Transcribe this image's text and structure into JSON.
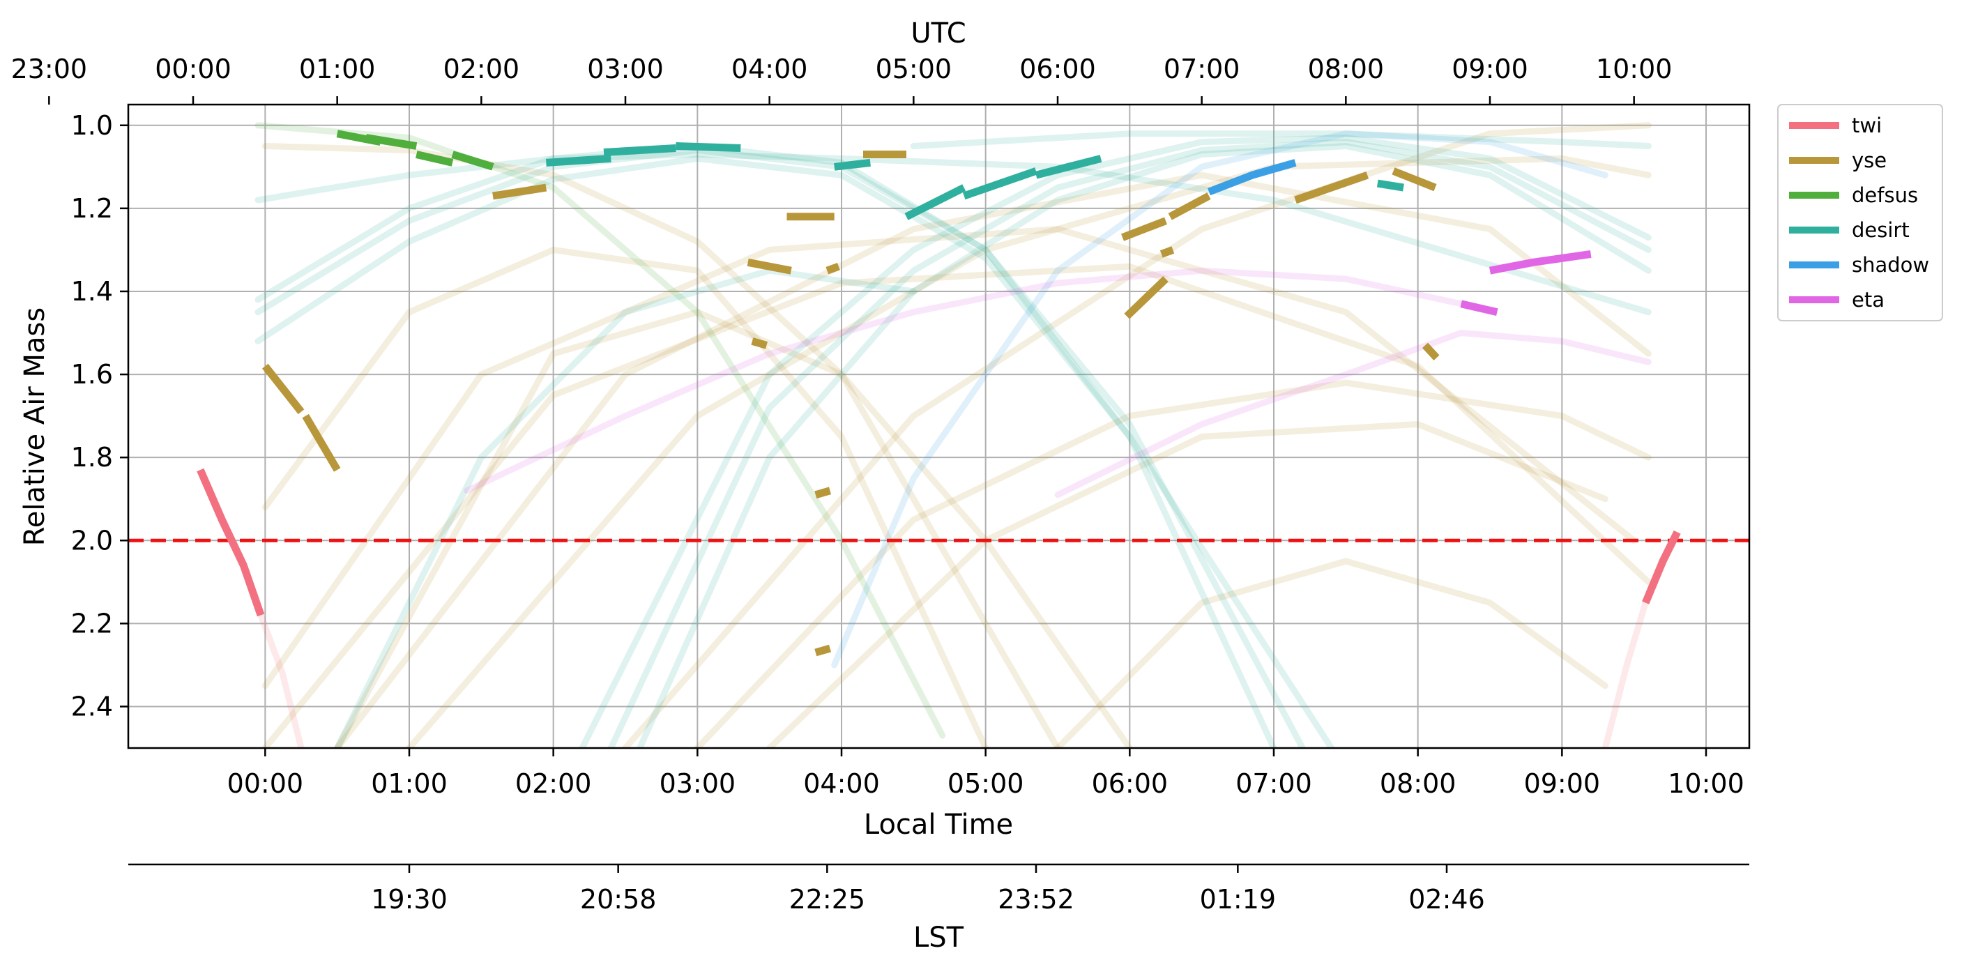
{
  "chart_data": {
    "type": "line",
    "title": "",
    "top_axis": {
      "label": "UTC",
      "ticks": [
        "23:00",
        "00:00",
        "01:00",
        "02:00",
        "03:00",
        "04:00",
        "05:00",
        "06:00",
        "07:00",
        "08:00",
        "09:00",
        "10:00"
      ]
    },
    "xlabel": "Local Time",
    "ylabel": "Relative Air Mass",
    "lst_axis": {
      "label": "LST",
      "ticks": [
        "19:30",
        "20:58",
        "22:25",
        "23:52",
        "01:19",
        "02:46"
      ]
    },
    "x_unit": "hours after local midnight",
    "xlim": [
      -0.95,
      10.3
    ],
    "ylim": [
      2.5,
      0.95
    ],
    "y_inverted": true,
    "x_ticks": [
      "00:00",
      "01:00",
      "02:00",
      "03:00",
      "04:00",
      "05:00",
      "06:00",
      "07:00",
      "08:00",
      "09:00",
      "10:00"
    ],
    "y_ticks": [
      "1.0",
      "1.2",
      "1.4",
      "1.6",
      "1.8",
      "2.0",
      "2.2",
      "2.4"
    ],
    "grid": true,
    "legend_position": "outside-right",
    "limit_line": {
      "y": 2.0,
      "color": "#ee1111",
      "style": "dashed"
    },
    "series": [
      {
        "name": "twi",
        "color": "#f2707f",
        "segments": [
          {
            "x": [
              -0.45,
              -0.3,
              -0.15,
              -0.03
            ],
            "y": [
              1.83,
              1.95,
              2.06,
              2.18
            ]
          },
          {
            "x": [
              9.58,
              9.7,
              9.8
            ],
            "y": [
              2.15,
              2.05,
              1.98
            ]
          }
        ],
        "faint": [
          {
            "x": [
              -0.03,
              0.12,
              0.25
            ],
            "y": [
              2.18,
              2.32,
              2.5
            ]
          },
          {
            "x": [
              9.3,
              9.45,
              9.58
            ],
            "y": [
              2.5,
              2.3,
              2.15
            ]
          }
        ]
      },
      {
        "name": "yse",
        "color": "#b8963a",
        "segments": [
          {
            "x": [
              0.0,
              0.25
            ],
            "y": [
              1.58,
              1.69
            ]
          },
          {
            "x": [
              0.28,
              0.5
            ],
            "y": [
              1.7,
              1.83
            ]
          },
          {
            "x": [
              1.58,
              1.95
            ],
            "y": [
              1.17,
              1.15
            ]
          },
          {
            "x": [
              3.35,
              3.65
            ],
            "y": [
              1.33,
              1.35
            ]
          },
          {
            "x": [
              3.62,
              3.95
            ],
            "y": [
              1.22,
              1.22
            ]
          },
          {
            "x": [
              3.38,
              3.48
            ],
            "y": [
              1.52,
              1.53
            ]
          },
          {
            "x": [
              3.82,
              3.92
            ],
            "y": [
              1.89,
              1.88
            ]
          },
          {
            "x": [
              3.82,
              3.92
            ],
            "y": [
              2.27,
              2.26
            ]
          },
          {
            "x": [
              3.9,
              3.98
            ],
            "y": [
              1.35,
              1.34
            ]
          },
          {
            "x": [
              4.15,
              4.45
            ],
            "y": [
              1.07,
              1.07
            ]
          },
          {
            "x": [
              5.95,
              6.25
            ],
            "y": [
              1.27,
              1.23
            ]
          },
          {
            "x": [
              5.98,
              6.25
            ],
            "y": [
              1.46,
              1.37
            ]
          },
          {
            "x": [
              6.22,
              6.3
            ],
            "y": [
              1.31,
              1.3
            ]
          },
          {
            "x": [
              6.28,
              6.55
            ],
            "y": [
              1.22,
              1.17
            ]
          },
          {
            "x": [
              7.15,
              7.65
            ],
            "y": [
              1.18,
              1.12
            ]
          },
          {
            "x": [
              7.83,
              8.12
            ],
            "y": [
              1.11,
              1.15
            ]
          },
          {
            "x": [
              8.05,
              8.13
            ],
            "y": [
              1.53,
              1.56
            ]
          }
        ],
        "faint": [
          {
            "x": [
              0.0,
              1.5,
              3.5,
              5.5,
              7.5,
              9.5
            ],
            "y": [
              2.35,
              1.6,
              1.3,
              1.25,
              1.45,
              2.0
            ]
          },
          {
            "x": [
              0.0,
              2.0,
              4.0,
              6.0,
              8.0,
              9.6
            ],
            "y": [
              2.5,
              1.65,
              1.38,
              1.34,
              1.58,
              2.1
            ]
          },
          {
            "x": [
              0.5,
              2.5,
              4.5,
              6.5,
              8.5,
              9.6
            ],
            "y": [
              2.5,
              1.6,
              1.25,
              1.12,
              1.25,
              1.55
            ]
          },
          {
            "x": [
              1.0,
              3.0,
              5.0,
              7.0,
              9.0,
              9.6
            ],
            "y": [
              2.5,
              1.7,
              1.3,
              1.1,
              1.08,
              1.12
            ]
          },
          {
            "x": [
              2.5,
              4.5,
              6.5,
              8.5,
              9.6
            ],
            "y": [
              2.5,
              1.7,
              1.25,
              1.02,
              1.0
            ]
          },
          {
            "x": [
              3.0,
              4.5,
              6.0,
              7.5,
              9.0,
              9.6
            ],
            "y": [
              2.5,
              1.95,
              1.7,
              1.62,
              1.7,
              1.8
            ]
          },
          {
            "x": [
              0.0,
              1.0,
              2.0,
              3.0,
              4.0,
              5.0
            ],
            "y": [
              1.92,
              1.45,
              1.3,
              1.35,
              1.75,
              2.5
            ]
          },
          {
            "x": [
              0.0,
              1.0,
              2.0,
              3.0,
              4.0,
              5.5
            ],
            "y": [
              1.05,
              1.06,
              1.12,
              1.28,
              1.6,
              2.5
            ]
          },
          {
            "x": [
              0.5,
              2.0,
              3.0,
              4.0,
              5.0,
              6.0
            ],
            "y": [
              2.5,
              1.55,
              1.45,
              1.6,
              2.0,
              2.5
            ]
          },
          {
            "x": [
              3.5,
              5.0,
              6.5,
              8.0,
              9.3
            ],
            "y": [
              2.5,
              2.0,
              1.75,
              1.72,
              1.9
            ]
          },
          {
            "x": [
              5.5,
              6.5,
              7.5,
              8.5,
              9.3
            ],
            "y": [
              2.5,
              2.15,
              2.05,
              2.15,
              2.35
            ]
          }
        ]
      },
      {
        "name": "defsus",
        "color": "#4fae3c",
        "segments": [
          {
            "x": [
              0.5,
              0.8
            ],
            "y": [
              1.02,
              1.04
            ]
          },
          {
            "x": [
              0.7,
              1.05
            ],
            "y": [
              1.03,
              1.05
            ]
          },
          {
            "x": [
              1.05,
              1.3
            ],
            "y": [
              1.07,
              1.09
            ]
          },
          {
            "x": [
              1.3,
              1.58
            ],
            "y": [
              1.07,
              1.1
            ]
          }
        ],
        "faint": [
          {
            "x": [
              -0.05,
              1.0,
              2.0,
              3.0,
              4.0,
              4.7
            ],
            "y": [
              1.0,
              1.03,
              1.15,
              1.45,
              2.0,
              2.47
            ]
          }
        ]
      },
      {
        "name": "desirt",
        "color": "#2fb09e",
        "segments": [
          {
            "x": [
              1.95,
              2.4
            ],
            "y": [
              1.09,
              1.08
            ]
          },
          {
            "x": [
              2.35,
              2.85
            ],
            "y": [
              1.065,
              1.055
            ]
          },
          {
            "x": [
              2.85,
              3.3
            ],
            "y": [
              1.05,
              1.055
            ]
          },
          {
            "x": [
              3.95,
              4.2
            ],
            "y": [
              1.1,
              1.09
            ]
          },
          {
            "x": [
              4.45,
              4.85
            ],
            "y": [
              1.22,
              1.15
            ]
          },
          {
            "x": [
              4.85,
              5.35
            ],
            "y": [
              1.17,
              1.11
            ]
          },
          {
            "x": [
              5.35,
              5.8
            ],
            "y": [
              1.12,
              1.08
            ]
          },
          {
            "x": [
              7.72,
              7.9
            ],
            "y": [
              1.14,
              1.15
            ]
          }
        ],
        "faint": [
          {
            "x": [
              -0.05,
              1.0,
              2.0,
              3.0,
              4.0,
              5.0,
              6.0,
              7.0
            ],
            "y": [
              1.42,
              1.2,
              1.08,
              1.05,
              1.09,
              1.3,
              1.75,
              2.5
            ]
          },
          {
            "x": [
              -0.05,
              1.0,
              2.0,
              3.0,
              4.0,
              5.0,
              6.0,
              7.2
            ],
            "y": [
              1.45,
              1.23,
              1.1,
              1.06,
              1.1,
              1.3,
              1.72,
              2.5
            ]
          },
          {
            "x": [
              -0.05,
              1.0,
              2.0,
              3.0,
              4.0,
              5.0,
              6.0,
              7.4
            ],
            "y": [
              1.52,
              1.28,
              1.13,
              1.08,
              1.12,
              1.32,
              1.75,
              2.5
            ]
          },
          {
            "x": [
              2.2,
              3.5,
              4.5,
              5.5,
              6.5,
              7.5,
              8.5,
              9.6
            ],
            "y": [
              2.5,
              1.6,
              1.3,
              1.12,
              1.04,
              1.03,
              1.08,
              1.27
            ]
          },
          {
            "x": [
              2.4,
              3.5,
              4.5,
              5.5,
              6.5,
              7.5,
              8.5,
              9.6
            ],
            "y": [
              2.5,
              1.68,
              1.35,
              1.15,
              1.06,
              1.04,
              1.1,
              1.3
            ]
          },
          {
            "x": [
              2.6,
              3.5,
              4.5,
              5.5,
              6.5,
              7.5,
              8.5,
              9.6
            ],
            "y": [
              2.5,
              1.8,
              1.4,
              1.18,
              1.07,
              1.05,
              1.12,
              1.35
            ]
          },
          {
            "x": [
              -0.05,
              1.0,
              2.0,
              3.0,
              4.0,
              5.5,
              7.0,
              9.6
            ],
            "y": [
              1.18,
              1.12,
              1.08,
              1.07,
              1.08,
              1.1,
              1.18,
              1.45
            ]
          },
          {
            "x": [
              0.5,
              1.5,
              2.5,
              3.5,
              4.5
            ],
            "y": [
              2.5,
              1.8,
              1.45,
              1.35,
              1.4
            ]
          },
          {
            "x": [
              4.5,
              6.0,
              7.5,
              9.0,
              9.6
            ],
            "y": [
              1.05,
              1.02,
              1.02,
              1.04,
              1.05
            ]
          }
        ]
      },
      {
        "name": "shadow",
        "color": "#3a9fe4",
        "segments": [
          {
            "x": [
              6.55,
              6.85,
              7.15
            ],
            "y": [
              1.16,
              1.12,
              1.09
            ]
          }
        ],
        "faint": [
          {
            "x": [
              3.95,
              4.5,
              5.5,
              6.5,
              7.5,
              8.5,
              9.3
            ],
            "y": [
              2.3,
              1.85,
              1.35,
              1.1,
              1.02,
              1.04,
              1.12
            ]
          }
        ]
      },
      {
        "name": "eta",
        "color": "#e066e6",
        "segments": [
          {
            "x": [
              8.3,
              8.55
            ],
            "y": [
              1.43,
              1.45
            ]
          },
          {
            "x": [
              8.5,
              8.8,
              9.2
            ],
            "y": [
              1.35,
              1.33,
              1.31
            ]
          }
        ],
        "faint": [
          {
            "x": [
              1.4,
              2.5,
              3.5,
              4.5,
              5.5,
              6.5,
              7.5,
              8.3
            ],
            "y": [
              1.88,
              1.7,
              1.55,
              1.45,
              1.38,
              1.35,
              1.37,
              1.43
            ]
          },
          {
            "x": [
              5.5,
              6.5,
              7.5,
              8.3,
              9.0,
              9.6
            ],
            "y": [
              1.89,
              1.72,
              1.6,
              1.5,
              1.52,
              1.57
            ]
          }
        ]
      }
    ]
  }
}
